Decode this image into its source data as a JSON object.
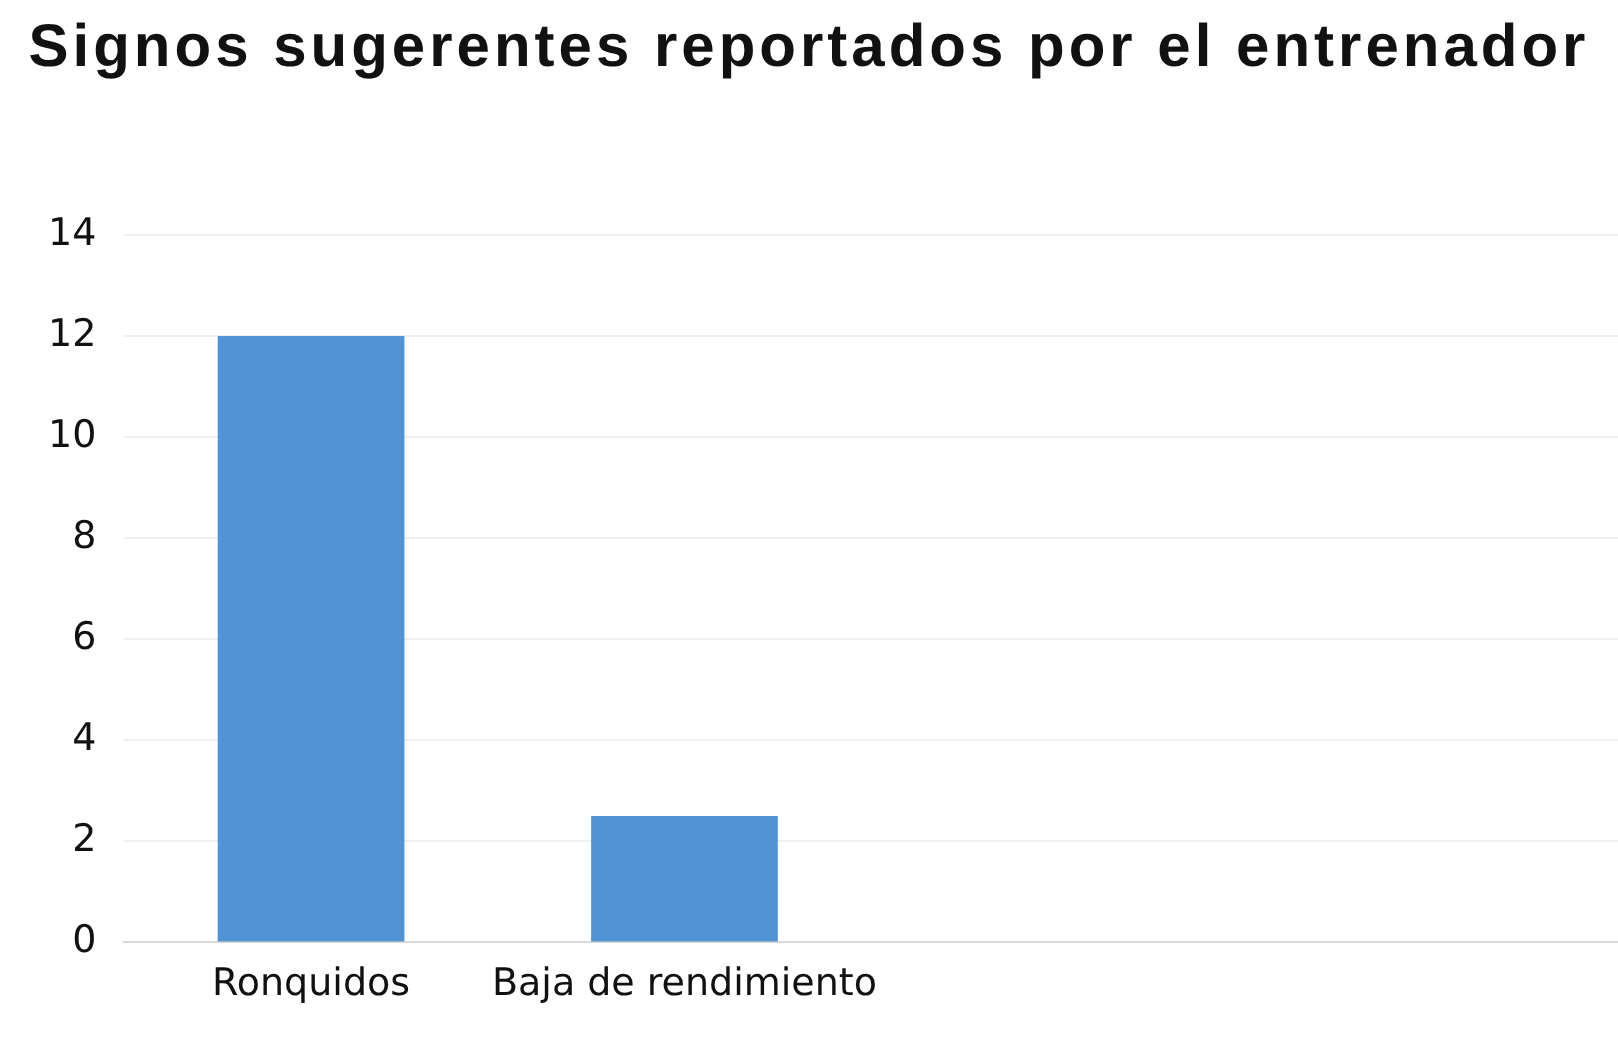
{
  "chart_data": {
    "type": "bar",
    "title": "Signos sugerentes reportados por el entrenador",
    "categories": [
      "Ronquidos",
      "Baja de rendimiento",
      null,
      null
    ],
    "values": [
      12,
      2.5,
      null,
      null
    ],
    "color": "#5094d6",
    "ylim": [
      0,
      14
    ],
    "yticks": [
      0,
      2,
      4,
      6,
      8,
      10,
      12,
      14
    ],
    "grid": "y",
    "legend": false
  }
}
